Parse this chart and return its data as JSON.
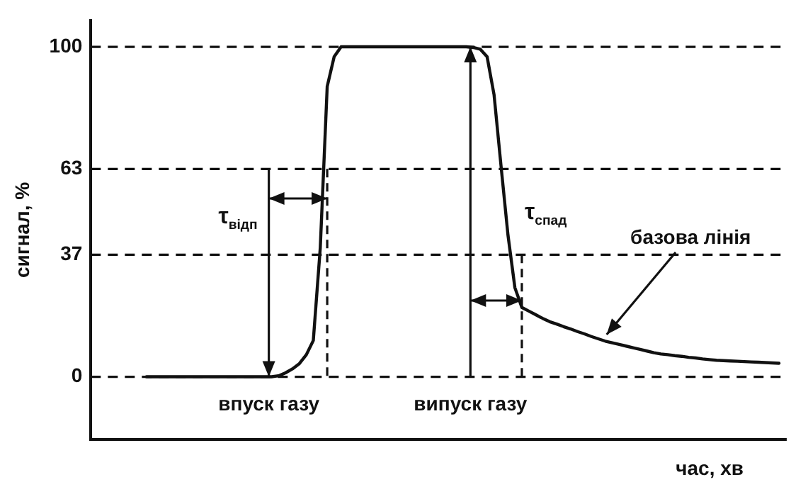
{
  "chart_data": {
    "type": "line",
    "xlabel": "час, хв",
    "ylabel": "сигнал, %",
    "categories": [
      null,
      null,
      null,
      null,
      null,
      null,
      null,
      null,
      null,
      null,
      null,
      null,
      null,
      null,
      null,
      null,
      null,
      null,
      null,
      null,
      null,
      null,
      null,
      null,
      null,
      null,
      null,
      null,
      null,
      null,
      null,
      null,
      null,
      null,
      null,
      null,
      null,
      null,
      null,
      null,
      null,
      null,
      null,
      null,
      null,
      null,
      null,
      null,
      null,
      null,
      null,
      null,
      null,
      null,
      null,
      null,
      null,
      null,
      null,
      null,
      null,
      null,
      null,
      null,
      null,
      null,
      null,
      null,
      null,
      null,
      null,
      null,
      null,
      null,
      null,
      null,
      null,
      null,
      null,
      null,
      null,
      null,
      null,
      null,
      null,
      null,
      null,
      null,
      null,
      null,
      null,
      null,
      null,
      null,
      null,
      null,
      null,
      null,
      null,
      null,
      null
    ],
    "ylim": [
      -19,
      108
    ],
    "yticks": [
      0,
      37,
      63,
      100
    ],
    "tick_labels": "y",
    "grid": false,
    "legend": false,
    "marker": "none",
    "line_style": "solid",
    "series": [
      {
        "color": "#111111",
        "values": [
          null,
          null,
          null,
          null,
          null,
          null,
          null,
          null,
          0,
          0,
          0,
          0,
          0,
          0,
          0,
          0,
          0,
          0,
          0,
          0,
          0,
          0,
          0,
          0,
          0,
          0,
          0,
          0.3,
          1.2,
          2.4,
          4,
          6.7,
          11,
          39,
          88,
          97,
          100,
          100,
          100,
          100,
          100,
          100,
          100,
          100,
          100,
          100,
          100,
          100,
          100,
          100,
          100,
          100,
          100,
          100,
          100,
          99.8,
          99.3,
          97,
          85.5,
          64,
          43,
          27,
          21,
          19.9,
          18.8,
          17.7,
          16.7,
          16,
          15.2,
          14.5,
          13.7,
          13,
          12.2,
          11.5,
          10.8,
          10.3,
          9.8,
          9.3,
          8.8,
          8.3,
          7.8,
          7.3,
          6.9,
          6.7,
          6.4,
          6.2,
          5.9,
          5.7,
          5.4,
          5.2,
          5,
          4.9,
          4.8,
          4.7,
          4.6,
          4.5,
          4.4,
          4.3,
          4.2,
          4.1,
          null
        ]
      }
    ],
    "ref_lines": [
      {
        "axis": "y",
        "value": 100,
        "line_style": "dashed",
        "color": "#111111"
      },
      {
        "axis": "y",
        "value": 63,
        "line_style": "dashed",
        "color": "#111111"
      },
      {
        "axis": "y",
        "value": 37,
        "line_style": "dashed",
        "color": "#111111"
      },
      {
        "axis": "y",
        "value": 0,
        "line_style": "dashed",
        "color": "#111111"
      }
    ],
    "annotations": [
      "впуск газу",
      "випуск газу",
      "τ$_{відп}$",
      "τ$_{спад}$",
      "базова лінія"
    ]
  }
}
